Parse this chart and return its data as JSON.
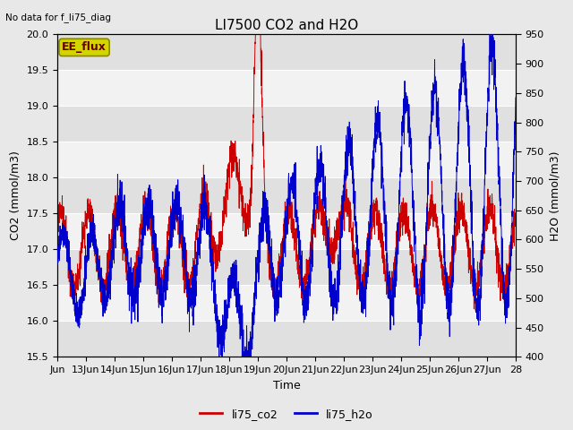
{
  "title": "LI7500 CO2 and H2O",
  "top_left_text": "No data for f_li75_diag",
  "annotation_text": "EE_flux",
  "xlabel": "Time",
  "ylabel_left": "CO2 (mmol/m3)",
  "ylabel_right": "H2O (mmol/m3)",
  "ylim_left": [
    15.5,
    20.0
  ],
  "ylim_right": [
    400,
    950
  ],
  "xtick_labels": [
    "Jun",
    "13Jun",
    "14Jun",
    "15Jun",
    "16Jun",
    "17Jun",
    "18Jun",
    "19Jun",
    "20Jun",
    "21Jun",
    "22Jun",
    "23Jun",
    "24Jun",
    "25Jun",
    "26Jun",
    "27Jun",
    "28"
  ],
  "legend_entries": [
    "li75_co2",
    "li75_h2o"
  ],
  "co2_color": "#cc0000",
  "h2o_color": "#0000cc",
  "bg_color": "#e8e8e8",
  "plot_bg_color": "#f0f0f0",
  "annotation_bg": "#cccc00",
  "title_fontsize": 11,
  "label_fontsize": 9,
  "tick_fontsize": 8
}
